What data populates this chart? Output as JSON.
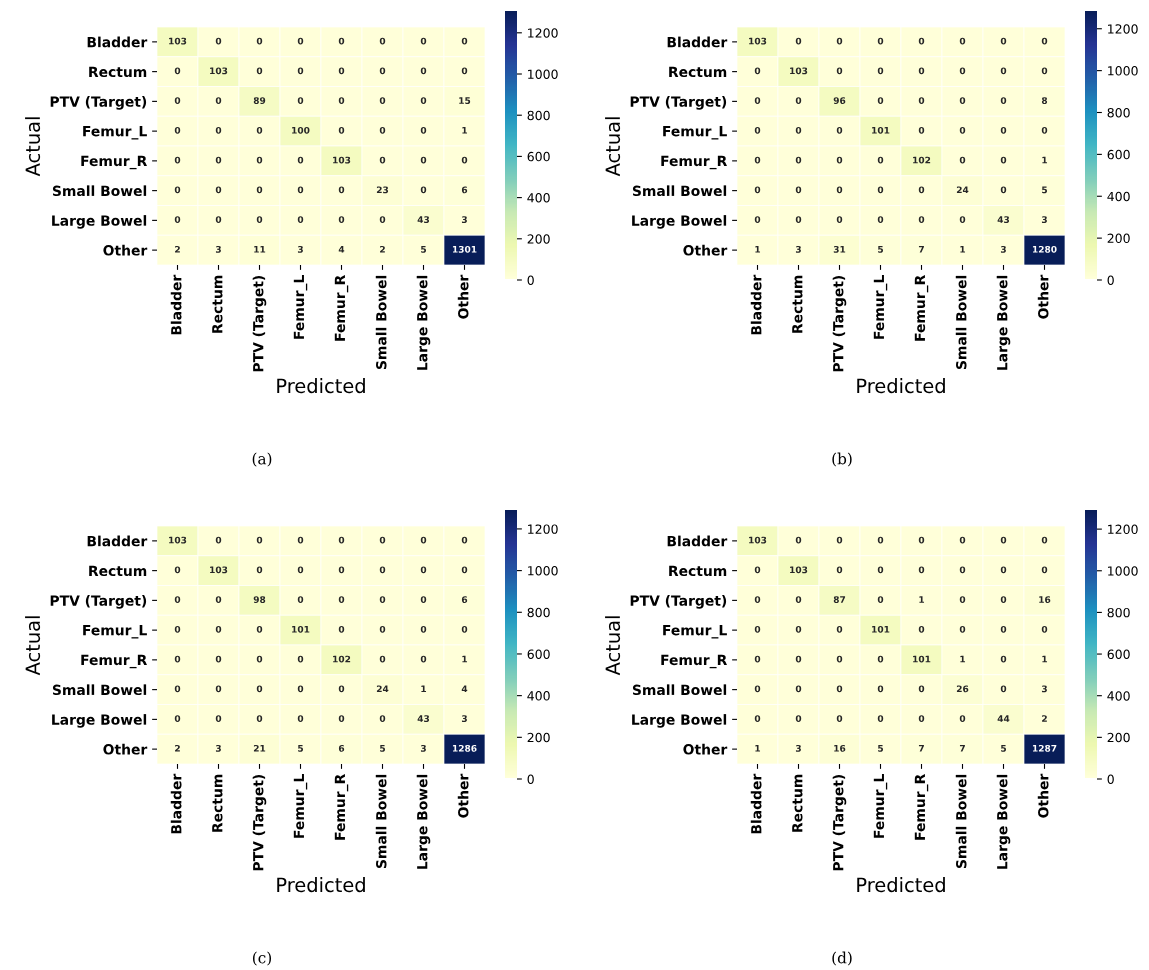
{
  "chart_data": [
    {
      "type": "heatmap",
      "xlabel": "Predicted",
      "ylabel": "Actual",
      "annotations": [
        "(a)"
      ],
      "data_labels": true,
      "categories": [
        "Bladder",
        "Rectum",
        "PTV (Target)",
        "Femur_L",
        "Femur_R",
        "Small Bowel",
        "Large Bowel",
        "Other"
      ],
      "y_categories": [
        "Bladder",
        "Rectum",
        "PTV (Target)",
        "Femur_L",
        "Femur_R",
        "Small Bowel",
        "Large Bowel",
        "Other"
      ],
      "cells": [
        [
          103,
          0,
          0,
          0,
          0,
          0,
          0,
          0
        ],
        [
          0,
          103,
          0,
          0,
          0,
          0,
          0,
          0
        ],
        [
          0,
          0,
          89,
          0,
          0,
          0,
          0,
          15
        ],
        [
          0,
          0,
          0,
          100,
          0,
          0,
          0,
          1
        ],
        [
          0,
          0,
          0,
          0,
          103,
          0,
          0,
          0
        ],
        [
          0,
          0,
          0,
          0,
          0,
          23,
          0,
          6
        ],
        [
          0,
          0,
          0,
          0,
          0,
          0,
          43,
          3
        ],
        [
          2,
          3,
          11,
          3,
          4,
          2,
          5,
          1301
        ]
      ],
      "clim": [
        0,
        1301
      ],
      "cticks": [
        0,
        200,
        400,
        600,
        800,
        1000,
        1200
      ]
    },
    {
      "type": "heatmap",
      "xlabel": "Predicted",
      "ylabel": "Actual",
      "annotations": [
        "(b)"
      ],
      "data_labels": true,
      "categories": [
        "Bladder",
        "Rectum",
        "PTV (Target)",
        "Femur_L",
        "Femur_R",
        "Small Bowel",
        "Large Bowel",
        "Other"
      ],
      "y_categories": [
        "Bladder",
        "Rectum",
        "PTV (Target)",
        "Femur_L",
        "Femur_R",
        "Small Bowel",
        "Large Bowel",
        "Other"
      ],
      "cells": [
        [
          103,
          0,
          0,
          0,
          0,
          0,
          0,
          0
        ],
        [
          0,
          103,
          0,
          0,
          0,
          0,
          0,
          0
        ],
        [
          0,
          0,
          96,
          0,
          0,
          0,
          0,
          8
        ],
        [
          0,
          0,
          0,
          101,
          0,
          0,
          0,
          0
        ],
        [
          0,
          0,
          0,
          0,
          102,
          0,
          0,
          1
        ],
        [
          0,
          0,
          0,
          0,
          0,
          24,
          0,
          5
        ],
        [
          0,
          0,
          0,
          0,
          0,
          0,
          43,
          3
        ],
        [
          1,
          3,
          31,
          5,
          7,
          1,
          3,
          1280
        ]
      ],
      "clim": [
        0,
        1280
      ],
      "cticks": [
        0,
        200,
        400,
        600,
        800,
        1000,
        1200
      ]
    },
    {
      "type": "heatmap",
      "xlabel": "Predicted",
      "ylabel": "Actual",
      "annotations": [
        "(c)"
      ],
      "data_labels": true,
      "categories": [
        "Bladder",
        "Rectum",
        "PTV (Target)",
        "Femur_L",
        "Femur_R",
        "Small Bowel",
        "Large Bowel",
        "Other"
      ],
      "y_categories": [
        "Bladder",
        "Rectum",
        "PTV (Target)",
        "Femur_L",
        "Femur_R",
        "Small Bowel",
        "Large Bowel",
        "Other"
      ],
      "cells": [
        [
          103,
          0,
          0,
          0,
          0,
          0,
          0,
          0
        ],
        [
          0,
          103,
          0,
          0,
          0,
          0,
          0,
          0
        ],
        [
          0,
          0,
          98,
          0,
          0,
          0,
          0,
          6
        ],
        [
          0,
          0,
          0,
          101,
          0,
          0,
          0,
          0
        ],
        [
          0,
          0,
          0,
          0,
          102,
          0,
          0,
          1
        ],
        [
          0,
          0,
          0,
          0,
          0,
          24,
          1,
          4
        ],
        [
          0,
          0,
          0,
          0,
          0,
          0,
          43,
          3
        ],
        [
          2,
          3,
          21,
          5,
          6,
          5,
          3,
          1286
        ]
      ],
      "clim": [
        0,
        1286
      ],
      "cticks": [
        0,
        200,
        400,
        600,
        800,
        1000,
        1200
      ]
    },
    {
      "type": "heatmap",
      "xlabel": "Predicted",
      "ylabel": "Actual",
      "annotations": [
        "(d)"
      ],
      "data_labels": true,
      "categories": [
        "Bladder",
        "Rectum",
        "PTV (Target)",
        "Femur_L",
        "Femur_R",
        "Small Bowel",
        "Large Bowel",
        "Other"
      ],
      "y_categories": [
        "Bladder",
        "Rectum",
        "PTV (Target)",
        "Femur_L",
        "Femur_R",
        "Small Bowel",
        "Large Bowel",
        "Other"
      ],
      "cells": [
        [
          103,
          0,
          0,
          0,
          0,
          0,
          0,
          0
        ],
        [
          0,
          103,
          0,
          0,
          0,
          0,
          0,
          0
        ],
        [
          0,
          0,
          87,
          0,
          1,
          0,
          0,
          16
        ],
        [
          0,
          0,
          0,
          101,
          0,
          0,
          0,
          0
        ],
        [
          0,
          0,
          0,
          0,
          101,
          1,
          0,
          1
        ],
        [
          0,
          0,
          0,
          0,
          0,
          26,
          0,
          3
        ],
        [
          0,
          0,
          0,
          0,
          0,
          0,
          44,
          2
        ],
        [
          1,
          3,
          16,
          5,
          7,
          7,
          5,
          1287
        ]
      ],
      "clim": [
        0,
        1287
      ],
      "cticks": [
        0,
        200,
        400,
        600,
        800,
        1000,
        1200
      ]
    }
  ]
}
